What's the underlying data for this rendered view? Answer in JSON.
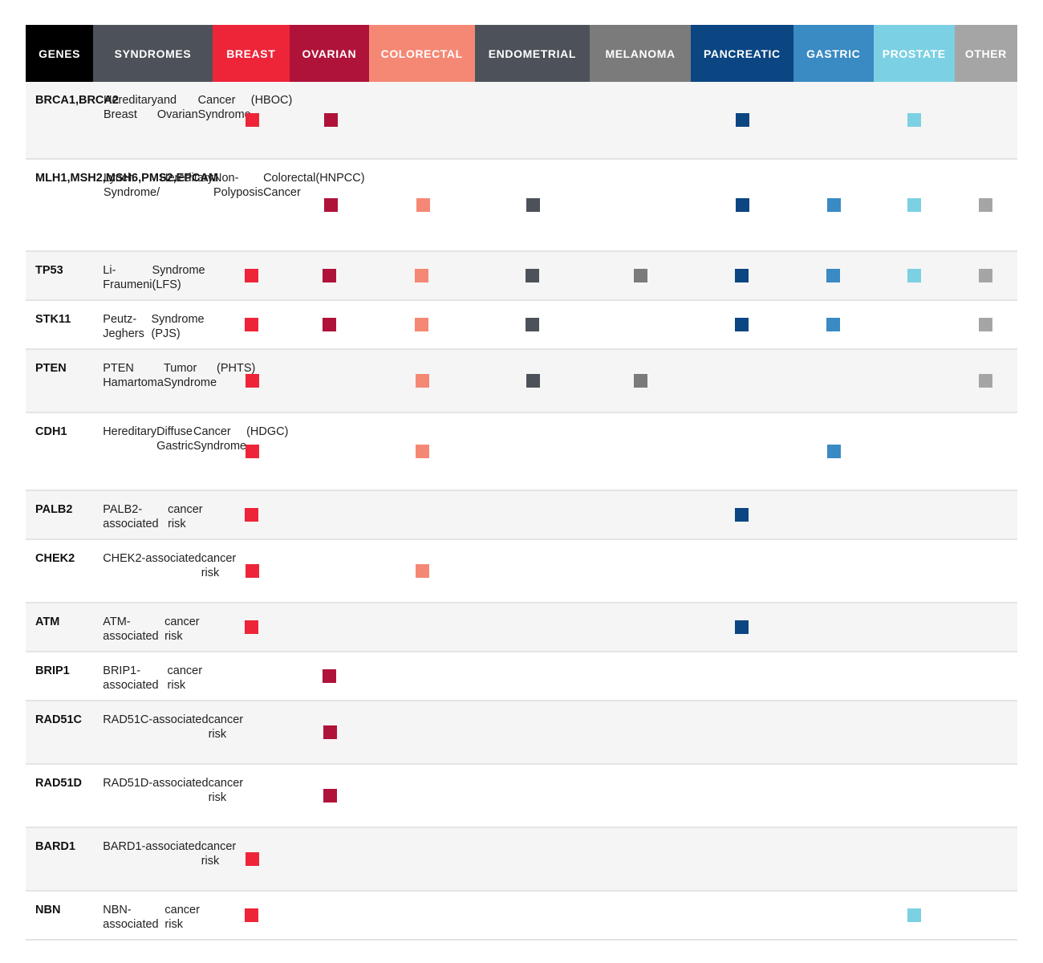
{
  "chart_data": {
    "type": "table",
    "columns": [
      {
        "key": "genes",
        "label": "GENES",
        "color": "#000000"
      },
      {
        "key": "syndromes",
        "label": "SYNDROMES",
        "color": "#4d525a"
      },
      {
        "key": "breast",
        "label": "BREAST",
        "color": "#ee2539"
      },
      {
        "key": "ovarian",
        "label": "OVARIAN",
        "color": "#b01339"
      },
      {
        "key": "colorectal",
        "label": "COLORECTAL",
        "color": "#f58874"
      },
      {
        "key": "endometrial",
        "label": "ENDOMETRIAL",
        "color": "#4d525a"
      },
      {
        "key": "melanoma",
        "label": "MELANOMA",
        "color": "#7b7b7b"
      },
      {
        "key": "pancreatic",
        "label": "PANCREATIC",
        "color": "#0b4682"
      },
      {
        "key": "gastric",
        "label": "GASTRIC",
        "color": "#3a8ac3"
      },
      {
        "key": "prostate",
        "label": "PROSTATE",
        "color": "#7cd0e3"
      },
      {
        "key": "other",
        "label": "OTHER",
        "color": "#a5a5a5"
      }
    ],
    "rows": [
      {
        "genes": "BRCA1,\nBRCA2",
        "syndrome": "Hereditary Breast\nand Ovarian\nCancer Syndrome\n(HBOC)",
        "cancers": [
          "breast",
          "ovarian",
          "pancreatic",
          "prostate"
        ]
      },
      {
        "genes": "MLH1,\nMSH2,\nMSH6,\nPMS2,\nEPCAM",
        "syndrome": "Lynch Syndrome/\nHereditary\nNon-Polyposis\nColorectal Cancer\n(HNPCC)",
        "cancers": [
          "ovarian",
          "colorectal",
          "endometrial",
          "pancreatic",
          "gastric",
          "prostate",
          "other"
        ]
      },
      {
        "genes": "TP53",
        "syndrome": "Li-Fraumeni\nSyndrome (LFS)",
        "cancers": [
          "breast",
          "ovarian",
          "colorectal",
          "endometrial",
          "melanoma",
          "pancreatic",
          "gastric",
          "prostate",
          "other"
        ]
      },
      {
        "genes": "STK11",
        "syndrome": "Peutz-Jeghers\nSyndrome (PJS)",
        "cancers": [
          "breast",
          "ovarian",
          "colorectal",
          "endometrial",
          "pancreatic",
          "gastric",
          "other"
        ]
      },
      {
        "genes": "PTEN",
        "syndrome": "PTEN Hamartoma\nTumor Syndrome\n(PHTS)",
        "cancers": [
          "breast",
          "colorectal",
          "endometrial",
          "melanoma",
          "other"
        ]
      },
      {
        "genes": "CDH1",
        "syndrome": "Hereditary\nDiffuse Gastric\nCancer Syndrome\n(HDGC)",
        "cancers": [
          "breast",
          "colorectal",
          "gastric"
        ]
      },
      {
        "genes": "PALB2",
        "syndrome": "PALB2-associated\ncancer risk",
        "cancers": [
          "breast",
          "pancreatic"
        ]
      },
      {
        "genes": "CHEK2",
        "syndrome": "CHEK2-\nassociated\ncancer risk",
        "cancers": [
          "breast",
          "colorectal"
        ]
      },
      {
        "genes": "ATM",
        "syndrome": "ATM-associated\ncancer risk",
        "cancers": [
          "breast",
          "pancreatic"
        ]
      },
      {
        "genes": "BRIP1",
        "syndrome": "BRIP1-associated\ncancer risk",
        "cancers": [
          "ovarian"
        ]
      },
      {
        "genes": "RAD51C",
        "syndrome": "RAD51C-\nassociated\ncancer risk",
        "cancers": [
          "ovarian"
        ]
      },
      {
        "genes": "RAD51D",
        "syndrome": "RAD51D-\nassociated\ncancer risk",
        "cancers": [
          "ovarian"
        ]
      },
      {
        "genes": "BARD1",
        "syndrome": "BARD1-\nassociated\ncancer risk",
        "cancers": [
          "breast"
        ]
      },
      {
        "genes": "NBN",
        "syndrome": "NBN-associated\ncancer risk",
        "cancers": [
          "breast",
          "prostate"
        ]
      }
    ]
  }
}
